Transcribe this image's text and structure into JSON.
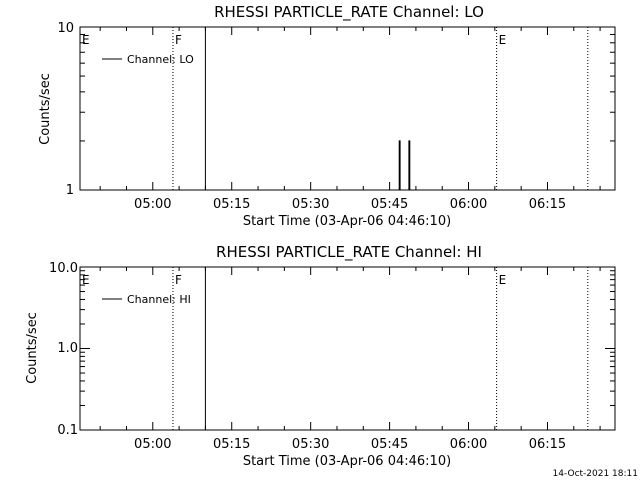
{
  "footer_stamp": "14-Oct-2021 18:11",
  "chart_data": [
    {
      "type": "line",
      "title": "RHESSI PARTICLE_RATE Channel: LO",
      "xlabel": "Start Time (03-Apr-06 04:46:10)",
      "ylabel": "Counts/sec",
      "yscale": "log",
      "ylim": [
        1,
        10
      ],
      "ytick_values": [
        1,
        10
      ],
      "ytick_labels": [
        "1",
        "10"
      ],
      "xlim": [
        "04:46:10",
        "06:27:50"
      ],
      "xtick_labels": [
        "05:00",
        "05:15",
        "05:30",
        "05:45",
        "06:00",
        "06:15"
      ],
      "xtick_minutes": [
        60,
        75,
        90,
        105,
        120,
        135
      ],
      "grid": false,
      "legend_position": "top-left",
      "series": [
        {
          "name": "Channel: LO",
          "x": [
            "05:10:00",
            "05:10:00",
            "05:10:00",
            "05:46:50",
            "05:46:50",
            "05:47:00",
            "05:47:00",
            "05:48:40",
            "05:48:40",
            "05:48:50",
            "05:48:50"
          ],
          "y": [
            1,
            10,
            1,
            1,
            2,
            2,
            1,
            1,
            2,
            2,
            1
          ]
        }
      ],
      "markers": [
        {
          "label": "E",
          "time": "04:46:10",
          "style": "none"
        },
        {
          "label": "F",
          "time": "05:03:50",
          "style": "dotted"
        },
        {
          "label": "E",
          "time": "06:05:20",
          "style": "dotted"
        },
        {
          "label": "",
          "time": "06:22:40",
          "style": "dotted"
        }
      ]
    },
    {
      "type": "line",
      "title": "RHESSI PARTICLE_RATE Channel: HI",
      "xlabel": "Start Time (03-Apr-06 04:46:10)",
      "ylabel": "Counts/sec",
      "yscale": "log",
      "ylim": [
        0.1,
        10
      ],
      "ytick_values": [
        0.1,
        1,
        10
      ],
      "ytick_labels": [
        "0.1",
        "1.0",
        "10.0"
      ],
      "xlim": [
        "04:46:10",
        "06:27:50"
      ],
      "xtick_labels": [
        "05:00",
        "05:15",
        "05:30",
        "05:45",
        "06:00",
        "06:15"
      ],
      "xtick_minutes": [
        60,
        75,
        90,
        105,
        120,
        135
      ],
      "grid": false,
      "legend_position": "top-left",
      "series": [
        {
          "name": "Channel: HI",
          "x": [
            "05:10:00",
            "05:10:00"
          ],
          "y": [
            0.1,
            10
          ]
        }
      ],
      "markers": [
        {
          "label": "E",
          "time": "04:46:10",
          "style": "none"
        },
        {
          "label": "F",
          "time": "05:03:50",
          "style": "dotted"
        },
        {
          "label": "E",
          "time": "06:05:20",
          "style": "dotted"
        },
        {
          "label": "",
          "time": "06:22:40",
          "style": "dotted"
        }
      ]
    }
  ]
}
